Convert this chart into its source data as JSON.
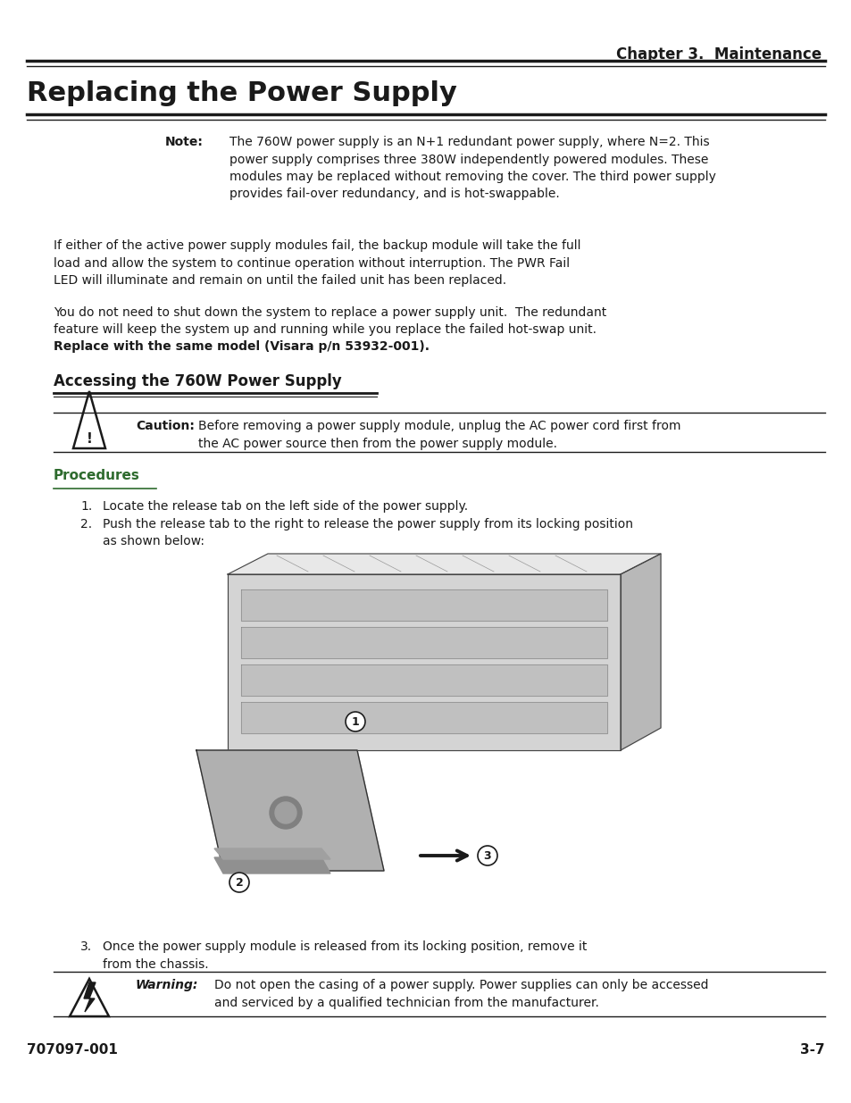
{
  "bg_color": "#ffffff",
  "text_color": "#1a1a1a",
  "header_text": "Chapter 3.  Maintenance",
  "title_text": "Replacing the Power Supply",
  "footer_left": "707097-001",
  "footer_right": "3-7",
  "note_label": "Note:",
  "note_text": "The 760W power supply is an N+1 redundant power supply, where N=2. This\npower supply comprises three 380W independently powered modules. These\nmodules may be replaced without removing the cover. The third power supply\nprovides fail-over redundancy, and is hot-swappable.",
  "para1": "If either of the active power supply modules fail, the backup module will take the full\nload and allow the system to continue operation without interruption. The PWR Fail\nLED will illuminate and remain on until the failed unit has been replaced.",
  "para2_normal": "You do not need to shut down the system to replace a power supply unit.  The redundant\nfeature will keep the system up and running while you replace the failed hot-swap unit.",
  "para2_bold": "Replace with the same model (Visara p/n 53932-001).",
  "subsection_title": "Accessing the 760W Power Supply",
  "caution_label": "Caution:",
  "caution_text": "Before removing a power supply module, unplug the AC power cord first from\nthe AC power source then from the power supply module.",
  "procedures_title": "Procedures",
  "procedures_color": "#2e6b2e",
  "step1": "Locate the release tab on the left side of the power supply.",
  "step2": "Push the release tab to the right to release the power supply from its locking position\nas shown below:",
  "step3": "Once the power supply module is released from its locking position, remove it\nfrom the chassis.",
  "warning_label": "Warning:",
  "warning_text": "Do not open the casing of a power supply. Power supplies can only be accessed\nand serviced by a qualified technician from the manufacturer."
}
